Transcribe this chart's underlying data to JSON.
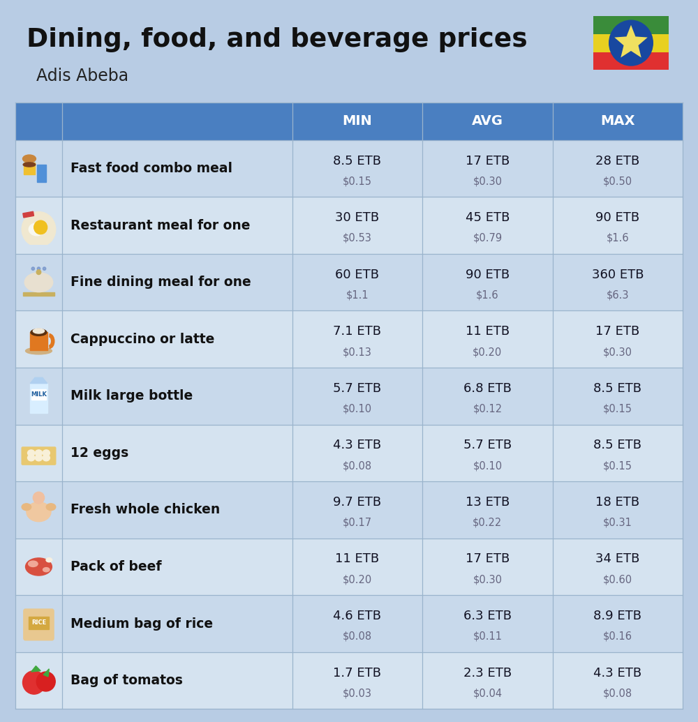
{
  "title": "Dining, food, and beverage prices",
  "subtitle": "Adis Abeba",
  "bg_color": "#b8cce4",
  "header_color": "#4a7fc1",
  "header_text_color": "#ffffff",
  "row_color_1": "#c8d9eb",
  "row_color_2": "#d5e3f0",
  "columns": [
    "MIN",
    "AVG",
    "MAX"
  ],
  "rows": [
    {
      "name": "Fast food combo meal",
      "min_etb": "8.5 ETB",
      "min_usd": "$0.15",
      "avg_etb": "17 ETB",
      "avg_usd": "$0.30",
      "max_etb": "28 ETB",
      "max_usd": "$0.50"
    },
    {
      "name": "Restaurant meal for one",
      "min_etb": "30 ETB",
      "min_usd": "$0.53",
      "avg_etb": "45 ETB",
      "avg_usd": "$0.79",
      "max_etb": "90 ETB",
      "max_usd": "$1.6"
    },
    {
      "name": "Fine dining meal for one",
      "min_etb": "60 ETB",
      "min_usd": "$1.1",
      "avg_etb": "90 ETB",
      "avg_usd": "$1.6",
      "max_etb": "360 ETB",
      "max_usd": "$6.3"
    },
    {
      "name": "Cappuccino or latte",
      "min_etb": "7.1 ETB",
      "min_usd": "$0.13",
      "avg_etb": "11 ETB",
      "avg_usd": "$0.20",
      "max_etb": "17 ETB",
      "max_usd": "$0.30"
    },
    {
      "name": "Milk large bottle",
      "min_etb": "5.7 ETB",
      "min_usd": "$0.10",
      "avg_etb": "6.8 ETB",
      "avg_usd": "$0.12",
      "max_etb": "8.5 ETB",
      "max_usd": "$0.15"
    },
    {
      "name": "12 eggs",
      "min_etb": "4.3 ETB",
      "min_usd": "$0.08",
      "avg_etb": "5.7 ETB",
      "avg_usd": "$0.10",
      "max_etb": "8.5 ETB",
      "max_usd": "$0.15"
    },
    {
      "name": "Fresh whole chicken",
      "min_etb": "9.7 ETB",
      "min_usd": "$0.17",
      "avg_etb": "13 ETB",
      "avg_usd": "$0.22",
      "max_etb": "18 ETB",
      "max_usd": "$0.31"
    },
    {
      "name": "Pack of beef",
      "min_etb": "11 ETB",
      "min_usd": "$0.20",
      "avg_etb": "17 ETB",
      "avg_usd": "$0.30",
      "max_etb": "34 ETB",
      "max_usd": "$0.60"
    },
    {
      "name": "Medium bag of rice",
      "min_etb": "4.6 ETB",
      "min_usd": "$0.08",
      "avg_etb": "6.3 ETB",
      "avg_usd": "$0.11",
      "max_etb": "8.9 ETB",
      "max_usd": "$0.16"
    },
    {
      "name": "Bag of tomatos",
      "min_etb": "1.7 ETB",
      "min_usd": "$0.03",
      "avg_etb": "2.3 ETB",
      "avg_usd": "$0.04",
      "max_etb": "4.3 ETB",
      "max_usd": "$0.08"
    }
  ],
  "icon_colors": [
    [
      "#e8a020",
      "#c06010",
      "#f5c842",
      "#5090d0"
    ],
    [
      "#f0c040",
      "#e08030",
      "#c8e060",
      "#d08040"
    ],
    [
      "#e8c870",
      "#d4a850",
      "#c09030",
      "#f5e090"
    ],
    [
      "#e07820",
      "#f0a030",
      "#2a2a2a",
      "#c8c8c8"
    ],
    [
      "#5098d8",
      "#78b8f0",
      "#a8d0f8",
      "#e8f4ff"
    ],
    [
      "#f0d080",
      "#c8a060",
      "#e8c070",
      "#d4a850"
    ],
    [
      "#f0c0a0",
      "#e0a080",
      "#f8d8c0",
      "#c89060"
    ],
    [
      "#d85040",
      "#c03828",
      "#f07060",
      "#e8a898"
    ],
    [
      "#f0d898",
      "#e0c070",
      "#d4a840",
      "#c89030"
    ],
    [
      "#e03030",
      "#c02020",
      "#f06050",
      "#d84040"
    ]
  ],
  "flag_green": "#3a8c3a",
  "flag_yellow": "#e8d020",
  "flag_red": "#e03030",
  "flag_blue": "#1848a0"
}
